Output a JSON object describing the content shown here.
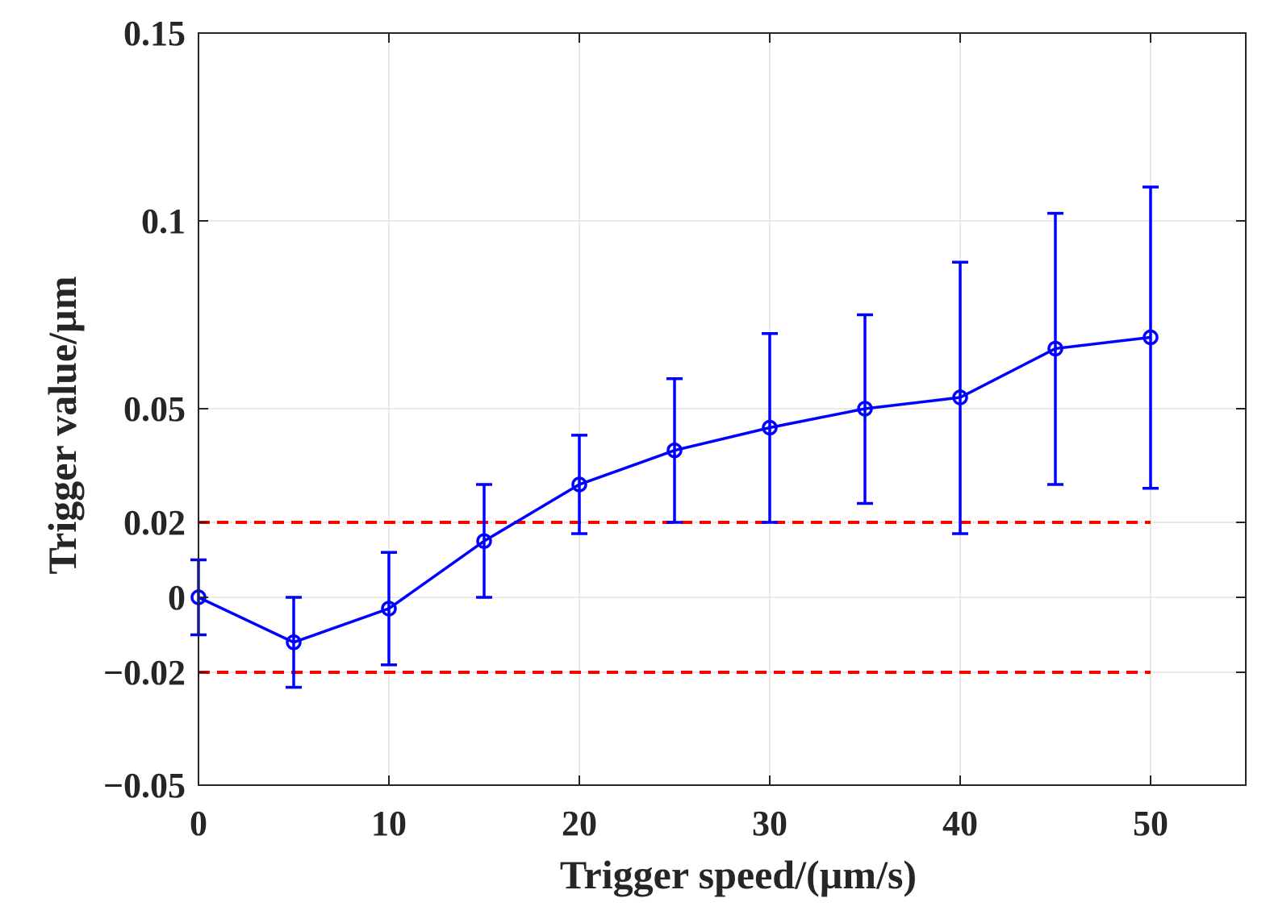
{
  "chart_data": {
    "type": "line",
    "title": "",
    "xlabel": "Trigger speed/(µm/s)",
    "ylabel": "Trigger value/µm",
    "xlim": [
      0,
      55
    ],
    "ylim": [
      -0.05,
      0.15
    ],
    "grid": true,
    "x_ticks": [
      0,
      10,
      20,
      30,
      40,
      50
    ],
    "x_tick_labels": [
      "0",
      "10",
      "20",
      "30",
      "40",
      "50"
    ],
    "y_ticks": [
      -0.05,
      -0.02,
      0,
      0.02,
      0.05,
      0.1,
      0.15
    ],
    "y_tick_labels": [
      "−0.05",
      "−0.02",
      "0",
      "0.02",
      "0.05",
      "0.1",
      "0.15"
    ],
    "series": [
      {
        "name": "trigger value",
        "color": "#0000ff",
        "marker": "circle",
        "x": [
          0,
          5,
          10,
          15,
          20,
          25,
          30,
          35,
          40,
          45,
          50
        ],
        "y": [
          0.0,
          -0.012,
          -0.003,
          0.015,
          0.03,
          0.039,
          0.045,
          0.05,
          0.053,
          0.066,
          0.069
        ],
        "err_low": [
          -0.01,
          -0.024,
          -0.018,
          0.0,
          0.017,
          0.02,
          0.02,
          0.025,
          0.017,
          0.03,
          0.029
        ],
        "err_high": [
          0.01,
          0.0,
          0.012,
          0.03,
          0.043,
          0.058,
          0.07,
          0.075,
          0.089,
          0.102,
          0.109
        ]
      }
    ],
    "reference_lines": [
      {
        "y": 0.02,
        "x_range": [
          0,
          50
        ],
        "color": "#ff0000",
        "style": "dashed"
      },
      {
        "y": -0.02,
        "x_range": [
          0,
          50
        ],
        "color": "#ff0000",
        "style": "dashed"
      }
    ]
  }
}
